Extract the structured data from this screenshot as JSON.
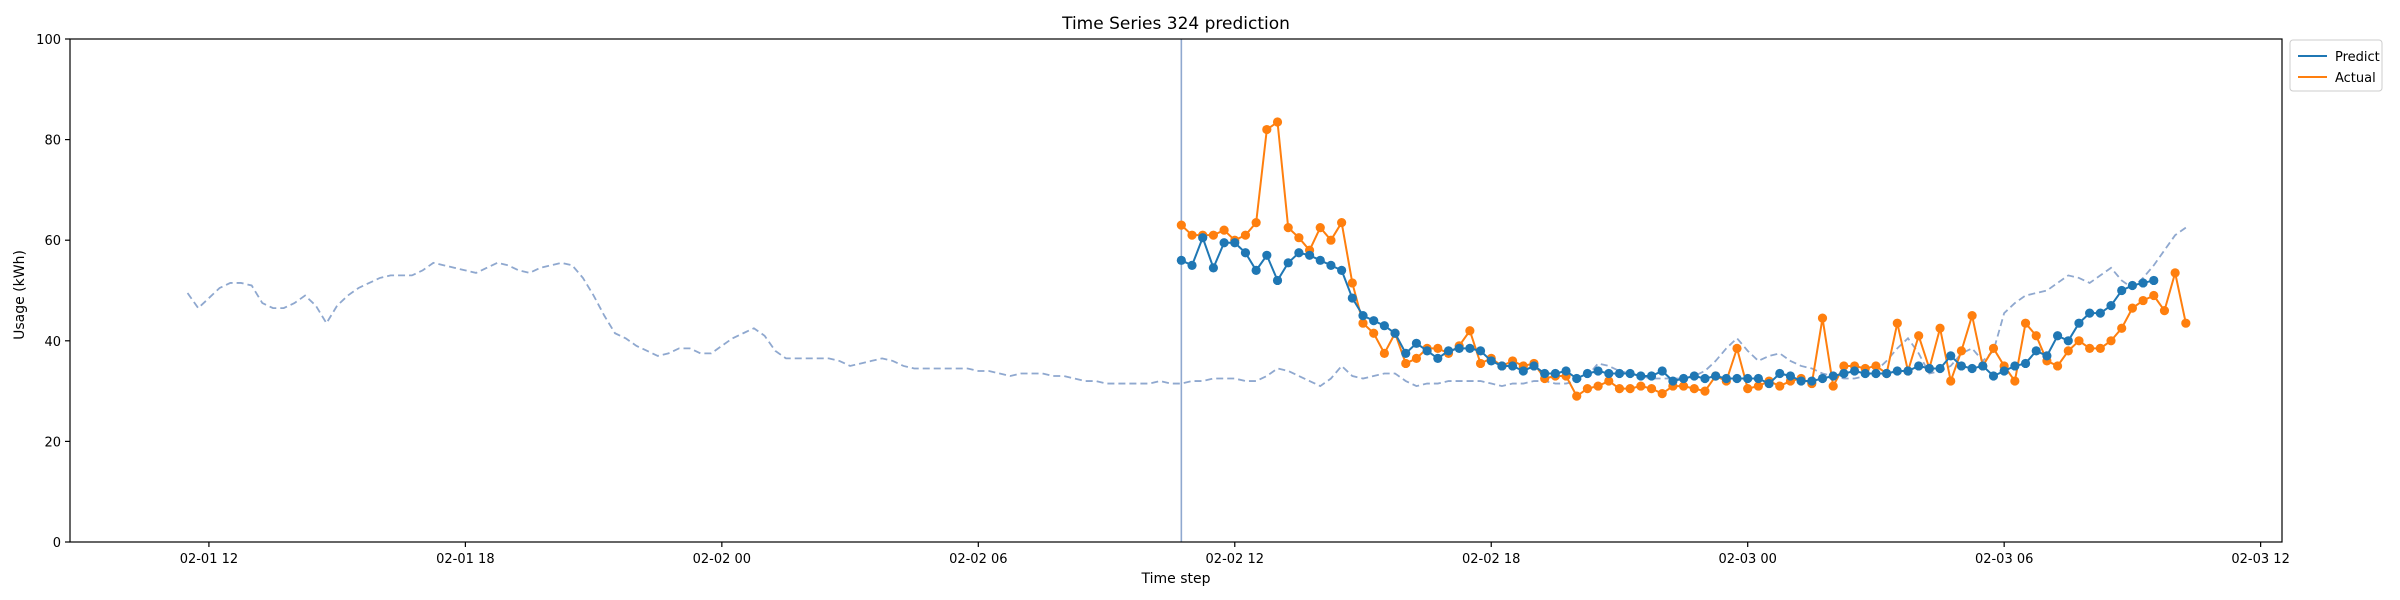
{
  "chart_data": {
    "type": "line",
    "title": "Time Series 324 prediction",
    "xlabel": "Time step",
    "ylabel": "Usage (kWh)",
    "ylim": [
      0,
      100
    ],
    "yticks": [
      "0",
      "20",
      "40",
      "60",
      "80",
      "100"
    ],
    "xticks": [
      "02-01 12",
      "02-01 18",
      "02-02 00",
      "02-02 06",
      "02-02 12",
      "02-02 18",
      "02-03 00",
      "02-03 06",
      "02-03 12"
    ],
    "xlim": [
      "02-01 08:45",
      "02-03 12:30"
    ],
    "legend_position": "top-right, outside plot",
    "grid": false,
    "forecast_start": "02-02 10:45",
    "history": {
      "start": "02-01 11:30",
      "step_minutes": 15,
      "style": "dashed",
      "color": "#8fa8cf",
      "values": [
        49.5,
        46.5,
        48.5,
        50.5,
        51.5,
        51.5,
        51,
        47.5,
        46.5,
        46.5,
        47.5,
        49,
        47,
        43.5,
        47,
        49,
        50.5,
        51.5,
        52.5,
        53,
        53,
        53,
        54,
        55.5,
        55,
        54.5,
        54,
        53.5,
        54.5,
        55.5,
        55,
        54,
        53.5,
        54.5,
        55,
        55.5,
        55,
        52.5,
        49,
        45,
        41.5,
        40.5,
        39,
        38,
        37,
        37.5,
        38.5,
        38.5,
        37.5,
        37.5,
        39,
        40.5,
        41.5,
        42.5,
        41,
        38,
        36.5,
        36.5,
        36.5,
        36.5,
        36.5,
        36,
        35,
        35.5,
        36,
        36.5,
        36,
        35,
        34.5,
        34.5,
        34.5,
        34.5,
        34.5,
        34.5,
        34,
        34,
        33.5,
        33,
        33.5,
        33.5,
        33.5,
        33,
        33,
        32.5,
        32,
        32,
        31.5,
        31.5,
        31.5,
        31.5,
        31.5,
        32,
        31.5,
        31.5,
        32,
        32,
        32.5,
        32.5,
        32.5,
        32,
        32,
        33,
        34.5,
        34,
        33,
        32,
        31,
        32.5,
        35,
        33,
        32.5,
        33,
        33.5,
        33.5,
        32,
        31,
        31.5,
        31.5,
        32,
        32,
        32,
        32,
        31.5,
        31,
        31.5,
        31.5,
        32,
        32,
        31.5,
        31.5,
        32,
        33,
        35.5,
        35,
        34,
        33.5,
        33,
        32.5,
        32.5,
        32.5,
        32.5,
        33,
        34,
        36,
        38.5,
        40.5,
        38,
        36,
        37,
        37.5,
        36,
        35,
        34.5,
        33.5,
        33,
        32.5,
        32.5,
        33,
        34,
        36,
        38.5,
        40.5,
        37.5,
        33.5,
        34,
        35,
        37.5,
        38.5,
        36,
        38,
        45.5,
        47.5,
        49,
        49.5,
        50,
        51.5,
        53,
        52.5,
        51.5,
        53,
        54.5,
        52,
        50.5,
        52.5,
        55,
        58,
        61,
        62.5
      ]
    },
    "series": [
      {
        "name": "Predict",
        "color": "#1f77b4",
        "start": "02-02 10:45",
        "step_minutes": 15,
        "values": [
          56,
          55,
          60.5,
          54.5,
          59.5,
          59.5,
          57.5,
          54,
          57,
          52,
          55.5,
          57.5,
          57,
          56,
          55,
          54,
          48.5,
          45,
          44,
          43,
          41.5,
          37.5,
          39.5,
          38,
          36.5,
          38,
          38.5,
          38.5,
          38,
          36,
          35,
          35,
          34,
          35,
          33.5,
          33.5,
          34,
          32.5,
          33.5,
          34,
          33.5,
          33.5,
          33.5,
          33,
          33,
          34,
          32,
          32.5,
          33,
          32.5,
          33,
          32.5,
          32.5,
          32.5,
          32.5,
          31.5,
          33.5,
          33,
          32,
          32,
          32.5,
          33,
          33.5,
          34,
          33.5,
          33.5,
          33.5,
          34,
          34,
          35,
          34.5,
          34.5,
          37,
          35,
          34.5,
          35,
          33,
          34,
          35,
          35.5,
          38,
          37,
          41,
          40,
          43.5,
          45.5,
          45.5,
          47,
          50,
          51,
          51.5,
          52
        ]
      },
      {
        "name": "Actual",
        "color": "#ff7f0e",
        "start": "02-02 10:45",
        "step_minutes": 15,
        "values": [
          63,
          61,
          61,
          61,
          62,
          60,
          61,
          63.5,
          82,
          83.5,
          62.5,
          60.5,
          58,
          62.5,
          60,
          63.5,
          51.5,
          43.5,
          41.5,
          37.5,
          41.5,
          35.5,
          36.5,
          38.5,
          38.5,
          37.5,
          39,
          42,
          35.5,
          36.5,
          35,
          36,
          35,
          35.5,
          32.5,
          33,
          33,
          29,
          30.5,
          31,
          32,
          30.5,
          30.5,
          31,
          30.5,
          29.5,
          31,
          31,
          30.5,
          30,
          33,
          32,
          38.5,
          30.5,
          31,
          32,
          31,
          32,
          32.5,
          31.5,
          44.5,
          31,
          35,
          35,
          34.5,
          35,
          33.5,
          43.5,
          34,
          41,
          34.5,
          42.5,
          32,
          38,
          45,
          35,
          38.5,
          35,
          32,
          43.5,
          41,
          36,
          35,
          38,
          40,
          38.5,
          38.5,
          40,
          42.5,
          46.5,
          48,
          49,
          46,
          53.5,
          43.5
        ]
      }
    ]
  }
}
